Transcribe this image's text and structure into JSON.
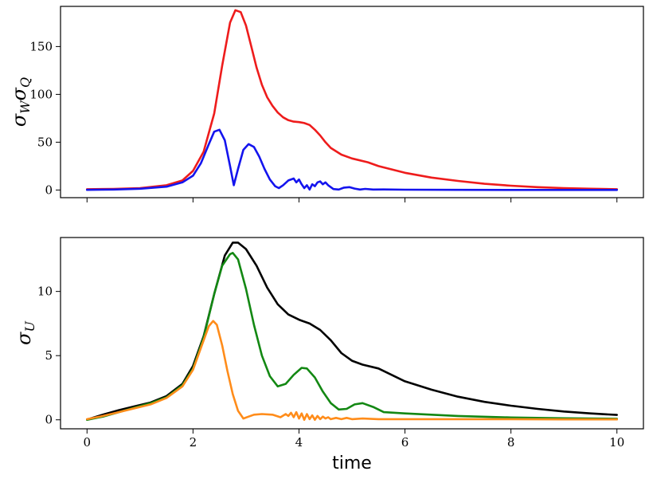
{
  "chart_data": [
    {
      "type": "line",
      "title": "",
      "xlabel": "",
      "ylabel_main": "σ",
      "ylabel_sub1": "W",
      "ylabel_main2": "σ",
      "ylabel_sub2": "Q",
      "xlim": [
        -0.5,
        10.5
      ],
      "ylim": [
        -8,
        192
      ],
      "xticks": [
        0,
        2,
        4,
        6,
        8,
        10
      ],
      "xtick_labels_shown": false,
      "yticks": [
        0,
        50,
        100,
        150
      ],
      "ytick_labels": [
        "0",
        "50",
        "100",
        "150"
      ],
      "series": [
        {
          "name": "red",
          "color": "#ee1c1c",
          "x": [
            0,
            0.5,
            1,
            1.5,
            1.8,
            2.0,
            2.2,
            2.4,
            2.55,
            2.7,
            2.8,
            2.9,
            3.0,
            3.1,
            3.2,
            3.3,
            3.4,
            3.5,
            3.6,
            3.7,
            3.8,
            3.9,
            4.0,
            4.1,
            4.2,
            4.3,
            4.4,
            4.5,
            4.6,
            4.8,
            5.0,
            5.3,
            5.5,
            6.0,
            6.5,
            7.0,
            7.5,
            8.0,
            8.5,
            9.0,
            9.5,
            10.0
          ],
          "values": [
            0.8,
            1.2,
            2,
            5,
            10,
            20,
            40,
            80,
            130,
            175,
            188,
            186,
            172,
            150,
            128,
            110,
            97,
            88,
            81,
            76,
            73,
            71.5,
            71,
            70,
            68,
            63,
            57,
            50,
            44,
            37,
            33,
            29,
            25,
            18,
            13,
            9.5,
            6.5,
            4.5,
            3,
            2,
            1.3,
            0.8
          ]
        },
        {
          "name": "blue",
          "color": "#1414ee",
          "x": [
            0,
            0.5,
            1,
            1.5,
            1.8,
            2.0,
            2.15,
            2.3,
            2.4,
            2.5,
            2.6,
            2.7,
            2.77,
            2.85,
            2.95,
            3.05,
            3.15,
            3.25,
            3.35,
            3.45,
            3.55,
            3.62,
            3.7,
            3.8,
            3.9,
            3.95,
            4.0,
            4.05,
            4.1,
            4.15,
            4.2,
            4.25,
            4.3,
            4.35,
            4.4,
            4.45,
            4.5,
            4.55,
            4.6,
            4.65,
            4.75,
            4.85,
            4.95,
            5.05,
            5.15,
            5.25,
            5.4,
            5.6,
            6.0,
            7.0,
            8.0,
            9.0,
            10.0
          ],
          "values": [
            0.2,
            0.5,
            1.3,
            3.5,
            8,
            15,
            28,
            48,
            61,
            63,
            52,
            25,
            5,
            22,
            42,
            48,
            45,
            35,
            22,
            11,
            4,
            2,
            5,
            10,
            12,
            8,
            11,
            6,
            2,
            5,
            0.5,
            6,
            4,
            8,
            9,
            6,
            8,
            5,
            3,
            1,
            0.5,
            2.5,
            3,
            1.5,
            0.5,
            1.2,
            0.5,
            0.6,
            0.3,
            0.2,
            0.1,
            0.1,
            0.1
          ]
        }
      ]
    },
    {
      "type": "line",
      "title": "",
      "xlabel": "time",
      "ylabel_main": "σ",
      "ylabel_sub": "U",
      "xlim": [
        -0.5,
        10.5
      ],
      "ylim": [
        -0.7,
        14.2
      ],
      "xticks": [
        0,
        2,
        4,
        6,
        8,
        10
      ],
      "xtick_labels": [
        "0",
        "2",
        "4",
        "6",
        "8",
        "10"
      ],
      "yticks": [
        0,
        5,
        10
      ],
      "ytick_labels": [
        "0",
        "5",
        "10"
      ],
      "series": [
        {
          "name": "black",
          "color": "#000000",
          "x": [
            0,
            0.3,
            0.6,
            0.9,
            1.2,
            1.5,
            1.8,
            2.0,
            2.2,
            2.4,
            2.6,
            2.75,
            2.85,
            3.0,
            3.2,
            3.4,
            3.6,
            3.8,
            4.0,
            4.2,
            4.4,
            4.6,
            4.8,
            5.0,
            5.2,
            5.5,
            6.0,
            6.5,
            7.0,
            7.5,
            8.0,
            8.5,
            9.0,
            9.5,
            10.0
          ],
          "values": [
            0.02,
            0.4,
            0.75,
            1.05,
            1.35,
            1.85,
            2.8,
            4.2,
            6.5,
            9.8,
            12.8,
            13.8,
            13.8,
            13.3,
            12.0,
            10.3,
            9.0,
            8.2,
            7.8,
            7.5,
            7.0,
            6.2,
            5.2,
            4.6,
            4.3,
            4.0,
            3.0,
            2.35,
            1.8,
            1.4,
            1.1,
            0.85,
            0.65,
            0.5,
            0.38
          ]
        },
        {
          "name": "green",
          "color": "#138813",
          "x": [
            0,
            0.3,
            0.6,
            0.9,
            1.2,
            1.5,
            1.8,
            2.0,
            2.2,
            2.4,
            2.55,
            2.7,
            2.75,
            2.85,
            3.0,
            3.15,
            3.3,
            3.45,
            3.6,
            3.75,
            3.9,
            4.05,
            4.15,
            4.3,
            4.45,
            4.6,
            4.75,
            4.9,
            5.05,
            5.2,
            5.4,
            5.6,
            6.0,
            7.0,
            8.0,
            9.0,
            10.0
          ],
          "values": [
            0,
            0.25,
            0.6,
            0.95,
            1.3,
            1.75,
            2.7,
            4.0,
            6.4,
            9.8,
            12.0,
            12.9,
            13.0,
            12.5,
            10.2,
            7.4,
            5.0,
            3.4,
            2.6,
            2.8,
            3.5,
            4.05,
            4.0,
            3.3,
            2.2,
            1.3,
            0.8,
            0.85,
            1.2,
            1.3,
            1.0,
            0.6,
            0.5,
            0.3,
            0.18,
            0.12,
            0.08
          ]
        },
        {
          "name": "orange",
          "color": "#ff8c1a",
          "x": [
            0,
            0.3,
            0.6,
            0.9,
            1.2,
            1.5,
            1.8,
            2.0,
            2.15,
            2.3,
            2.38,
            2.45,
            2.55,
            2.65,
            2.75,
            2.85,
            2.95,
            3.05,
            3.15,
            3.3,
            3.5,
            3.65,
            3.75,
            3.8,
            3.85,
            3.9,
            3.95,
            4.0,
            4.05,
            4.1,
            4.15,
            4.2,
            4.25,
            4.3,
            4.35,
            4.4,
            4.45,
            4.5,
            4.55,
            4.6,
            4.7,
            4.8,
            4.9,
            5.0,
            5.2,
            5.5,
            6.0,
            7.0,
            8.0,
            9.0,
            10.0
          ],
          "values": [
            0.05,
            0.3,
            0.6,
            0.9,
            1.2,
            1.7,
            2.6,
            3.9,
            5.6,
            7.3,
            7.7,
            7.4,
            5.8,
            3.8,
            2.0,
            0.7,
            0.1,
            0.25,
            0.4,
            0.45,
            0.4,
            0.2,
            0.45,
            0.3,
            0.55,
            0.2,
            0.6,
            0.1,
            0.5,
            0.0,
            0.45,
            0.05,
            0.35,
            0.0,
            0.3,
            0.05,
            0.25,
            0.1,
            0.2,
            0.05,
            0.15,
            0.05,
            0.15,
            0.05,
            0.1,
            0.05,
            0.05,
            0.05,
            0.05,
            0.03,
            0.03
          ]
        }
      ]
    }
  ]
}
